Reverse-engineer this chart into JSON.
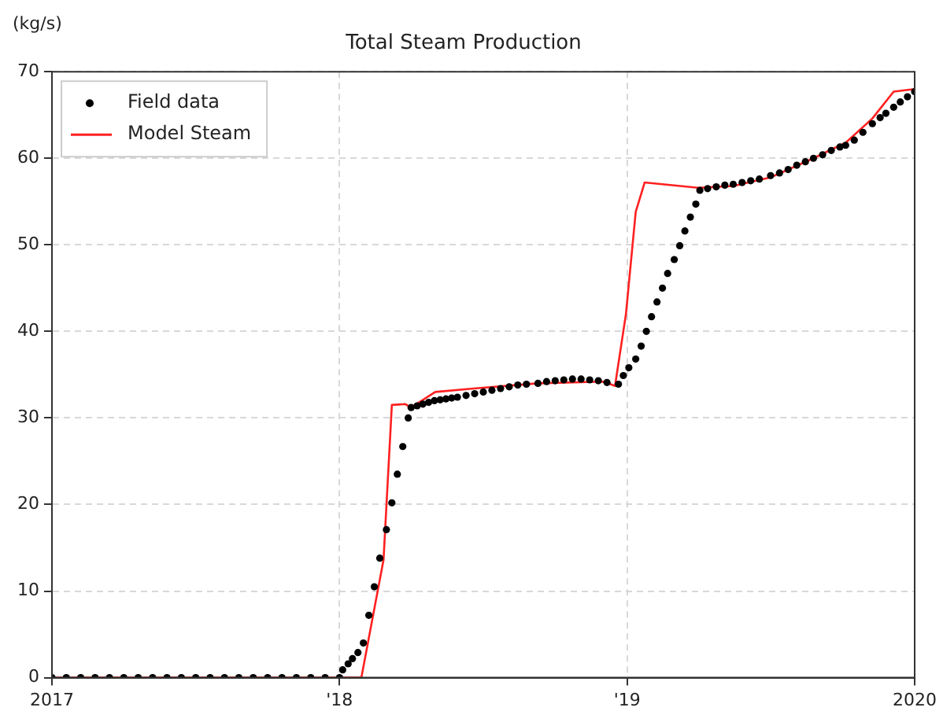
{
  "chart_data": {
    "type": "line",
    "title": "Total Steam Production",
    "ylabel": "(kg/s)",
    "xlim": [
      2017,
      2020
    ],
    "xticks": [
      2017,
      {
        "value": 2018,
        "label": "'18"
      },
      {
        "value": 2019,
        "label": "'19"
      },
      2020
    ],
    "ylim": [
      0,
      70
    ],
    "yticks": [
      0,
      10,
      20,
      30,
      40,
      50,
      60,
      70
    ],
    "grid": true,
    "legend": "top left",
    "series": [
      {
        "name": "Field data",
        "type": "scatter",
        "marker": "circle",
        "color": "#000000",
        "x": [
          2017,
          2017.05,
          2017.1,
          2017.15,
          2017.2,
          2017.25,
          2017.3,
          2017.35,
          2017.4,
          2017.45,
          2017.5,
          2017.55,
          2017.6,
          2017.65,
          2017.7,
          2017.75,
          2017.8,
          2017.85,
          2017.9,
          2017.95,
          2018,
          2018.011,
          2018.03,
          2018.045,
          2018.064,
          2018.083,
          2018.102,
          2018.121,
          2018.14,
          2018.163,
          2018.182,
          2018.201,
          2018.22,
          2018.239,
          2018.249,
          2018.27,
          2018.29,
          2018.31,
          2018.33,
          2018.35,
          2018.37,
          2018.39,
          2018.41,
          2018.44,
          2018.47,
          2018.5,
          2018.53,
          2018.56,
          2018.59,
          2018.62,
          2018.65,
          2018.69,
          2018.72,
          2018.75,
          2018.78,
          2018.81,
          2018.84,
          2018.87,
          2018.9,
          2018.93,
          2018.97,
          2018.987,
          2019.006,
          2019.03,
          2019.049,
          2019.067,
          2019.085,
          2019.104,
          2019.123,
          2019.141,
          2019.164,
          2019.183,
          2019.201,
          2019.22,
          2019.239,
          2019.253,
          2019.28,
          2019.31,
          2019.34,
          2019.369,
          2019.4,
          2019.43,
          2019.46,
          2019.499,
          2019.53,
          2019.56,
          2019.59,
          2019.62,
          2019.648,
          2019.68,
          2019.71,
          2019.74,
          2019.76,
          2019.79,
          2019.82,
          2019.853,
          2019.88,
          2019.9,
          2019.927,
          2019.95,
          2019.975,
          2020
        ],
        "values": [
          0,
          0,
          0,
          0,
          0,
          0,
          0,
          0,
          0,
          0,
          0,
          0,
          0,
          0,
          0,
          0,
          0,
          0,
          0,
          0,
          0,
          0.9,
          1.6,
          2.2,
          2.9,
          4.0,
          7.2,
          10.5,
          13.8,
          17.1,
          20.2,
          23.5,
          26.7,
          30.0,
          31.2,
          31.4,
          31.6,
          31.8,
          32.0,
          32.1,
          32.2,
          32.3,
          32.4,
          32.6,
          32.8,
          33.0,
          33.2,
          33.4,
          33.6,
          33.8,
          33.9,
          34.0,
          34.2,
          34.3,
          34.4,
          34.5,
          34.5,
          34.4,
          34.3,
          34.1,
          33.9,
          34.9,
          35.8,
          36.8,
          38.3,
          40.0,
          41.7,
          43.4,
          45.0,
          46.7,
          48.3,
          49.9,
          51.6,
          53.2,
          54.7,
          56.3,
          56.5,
          56.7,
          56.9,
          57.0,
          57.2,
          57.4,
          57.6,
          58.0,
          58.3,
          58.7,
          59.2,
          59.6,
          60.0,
          60.4,
          60.9,
          61.3,
          61.5,
          62.1,
          63.0,
          64.0,
          64.7,
          65.2,
          65.9,
          66.5,
          67.1,
          67.7
        ]
      },
      {
        "name": "Model Steam",
        "type": "line",
        "marker": "none",
        "color": "#ff2020",
        "x": [
          2017,
          2018.076,
          2018.153,
          2018.182,
          2018.229,
          2018.248,
          2018.333,
          2018.466,
          2018.69,
          2018.92,
          2018.958,
          2018.996,
          2019.03,
          2019.061,
          2019.247,
          2019.369,
          2019.499,
          2019.648,
          2019.76,
          2019.853,
          2019.927,
          2020
        ],
        "values": [
          0,
          0,
          13.6,
          31.5,
          31.6,
          31.2,
          33.0,
          33.4,
          34.0,
          34.2,
          33.7,
          42.0,
          53.8,
          57.2,
          56.6,
          56.8,
          57.8,
          60.0,
          61.8,
          64.6,
          67.7,
          68.0
        ]
      }
    ]
  }
}
